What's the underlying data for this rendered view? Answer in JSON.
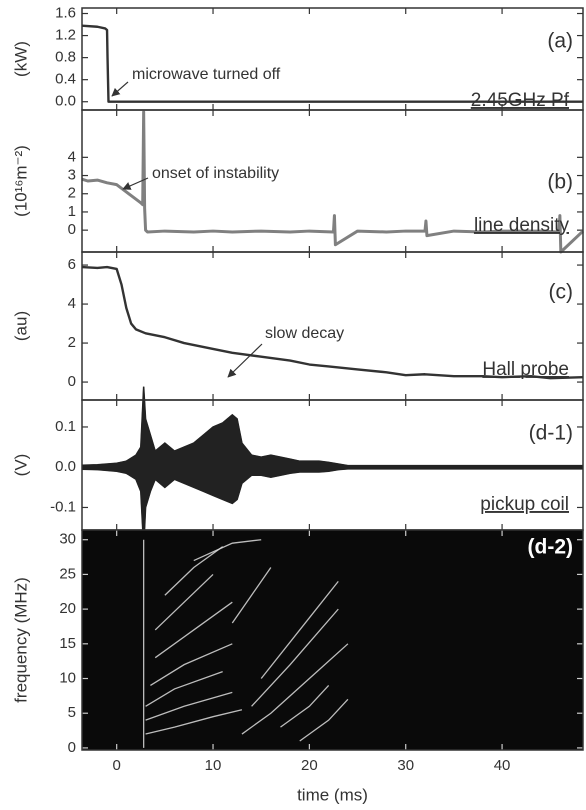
{
  "chart_data": [
    {
      "type": "line",
      "ylabel": "(kW)",
      "label": "(a)",
      "signal": "2.45GHz Pf",
      "note": "microwave turned off",
      "xlim": [
        -3.6,
        48.4
      ],
      "xticks": [
        0,
        10,
        20,
        30,
        40
      ],
      "ylim": [
        -0.15,
        1.7
      ],
      "yticks": [
        {
          "value": 0,
          "label": "0.0"
        },
        0.4,
        0.8,
        1.2,
        1.6
      ],
      "color": "#333333",
      "x": [
        -3.6,
        -2,
        -1.2,
        -1,
        -0.95,
        -0.85,
        48.4
      ],
      "values": [
        1.38,
        1.36,
        1.33,
        1.3,
        0.8,
        0,
        0
      ]
    },
    {
      "type": "line",
      "ylabel": "(10¹⁶m⁻²)",
      "label": "(b)",
      "signal": "line density",
      "note": "onset of instability",
      "xlim": [
        -3.6,
        48.4
      ],
      "xticks": [
        0,
        10,
        20,
        30,
        40
      ],
      "ylim": [
        -1.2,
        6.6
      ],
      "yticks": [
        0,
        1,
        2,
        3,
        4
      ],
      "color": "#808080",
      "x": [
        -3.6,
        -3,
        -2,
        -1,
        0,
        0.5,
        1,
        1.5,
        2,
        2.5,
        2.7,
        2.8,
        2.9,
        3.0,
        3.2,
        5,
        8,
        10,
        12,
        15,
        18,
        20,
        22.5,
        22.6,
        22.7,
        25,
        28,
        30,
        32,
        32.1,
        32.2,
        35,
        38,
        40,
        44,
        45.9,
        46,
        46.1,
        48.4
      ],
      "values": [
        2.8,
        2.7,
        2.75,
        2.6,
        2.5,
        2.3,
        2.1,
        1.9,
        1.7,
        1.5,
        1.4,
        6.5,
        1.2,
        0,
        -0.1,
        -0.05,
        -0.1,
        -0.05,
        -0.1,
        -0.05,
        -0.1,
        -0.05,
        -0.1,
        0.8,
        -0.8,
        -0.05,
        -0.1,
        -0.05,
        -0.05,
        0.5,
        -0.3,
        -0.05,
        -0.1,
        -0.05,
        -0.05,
        -0.1,
        0.8,
        -1.2,
        -0.05
      ]
    },
    {
      "type": "line",
      "ylabel": "(au)",
      "label": "(c)",
      "signal": "Hall probe",
      "note": "slow decay",
      "xlim": [
        -3.6,
        48.4
      ],
      "xticks": [
        0,
        10,
        20,
        30,
        40
      ],
      "ylim": [
        -0.92,
        6.67
      ],
      "yticks": [
        0,
        2,
        4,
        6
      ],
      "color": "#333333",
      "x": [
        -3.6,
        -2,
        -1,
        0,
        0.5,
        1,
        1.5,
        2,
        3,
        5,
        7,
        10,
        12,
        15,
        18,
        20,
        22,
        25,
        28,
        30,
        32,
        35,
        38,
        40,
        43,
        45,
        48.4
      ],
      "values": [
        5.9,
        5.85,
        5.9,
        5.8,
        5,
        3.8,
        3,
        2.7,
        2.5,
        2.3,
        2.0,
        1.7,
        1.5,
        1.3,
        1.1,
        0.9,
        0.8,
        0.65,
        0.5,
        0.35,
        0.4,
        0.3,
        0.3,
        0.25,
        0.3,
        0.2,
        0.25
      ]
    },
    {
      "type": "band",
      "ylabel": "(V)",
      "label": "(d-1)",
      "signal": "pickup coil",
      "xlim": [
        -3.6,
        48.4
      ],
      "xticks": [
        0,
        10,
        20,
        30,
        40
      ],
      "ylim": [
        -0.156,
        0.167
      ],
      "yticks": [
        -0.1,
        {
          "value": 0,
          "label": "0.0"
        },
        0.1
      ],
      "color": "#222222",
      "x": [
        -3.6,
        -2,
        0,
        1,
        2,
        2.5,
        2.8,
        3,
        3.5,
        4,
        5,
        6,
        7,
        8,
        9,
        10,
        11,
        12,
        12.5,
        13,
        14,
        15,
        16,
        17,
        18,
        19,
        20,
        21,
        22,
        23,
        24,
        30,
        40,
        48.4
      ],
      "series": [
        {
          "values": [
            0.005,
            0.006,
            0.01,
            0.015,
            0.03,
            0.05,
            0.2,
            0.12,
            0.08,
            0.04,
            0.06,
            0.04,
            0.05,
            0.06,
            0.08,
            0.1,
            0.11,
            0.13,
            0.12,
            0.06,
            0.03,
            0.025,
            0.03,
            0.025,
            0.02,
            0.015,
            0.015,
            0.015,
            0.012,
            0.008,
            0.004,
            0.004,
            0.004,
            0.004
          ]
        },
        {
          "values": [
            -0.005,
            -0.006,
            -0.01,
            -0.015,
            -0.03,
            -0.06,
            -0.2,
            -0.1,
            -0.06,
            -0.03,
            -0.05,
            -0.03,
            -0.04,
            -0.05,
            -0.06,
            -0.07,
            -0.08,
            -0.09,
            -0.08,
            -0.04,
            -0.02,
            -0.02,
            -0.025,
            -0.02,
            -0.015,
            -0.012,
            -0.012,
            -0.012,
            -0.01,
            -0.006,
            -0.004,
            -0.004,
            -0.004,
            -0.004
          ]
        }
      ]
    },
    {
      "type": "spectrogram",
      "ylabel": "frequency (MHz)",
      "label": "(d-2)",
      "xlabel": "time (ms)",
      "xlim": [
        -3.6,
        48.4
      ],
      "xticks": [
        0,
        10,
        20,
        30,
        40
      ],
      "ylim": [
        -0.3,
        31.4
      ],
      "yticks": [
        0,
        5,
        10,
        15,
        20,
        25,
        30
      ],
      "background": "#0a0a0a",
      "color": "#dddddd",
      "series": [
        {
          "x": [
            2.8,
            2.8
          ],
          "values": [
            0,
            30
          ]
        },
        {
          "x": [
            3,
            6,
            10,
            13
          ],
          "values": [
            2,
            3,
            4.5,
            5.5
          ]
        },
        {
          "x": [
            3,
            7,
            12
          ],
          "values": [
            4,
            6,
            8
          ]
        },
        {
          "x": [
            3,
            6,
            11
          ],
          "values": [
            6,
            8.5,
            11
          ]
        },
        {
          "x": [
            3.5,
            7,
            12
          ],
          "values": [
            9,
            12,
            15
          ]
        },
        {
          "x": [
            4,
            8,
            12
          ],
          "values": [
            13,
            17,
            21
          ]
        },
        {
          "x": [
            4,
            7,
            10
          ],
          "values": [
            17,
            21,
            25
          ]
        },
        {
          "x": [
            5,
            8,
            11
          ],
          "values": [
            22,
            26,
            29
          ]
        },
        {
          "x": [
            13,
            16,
            20,
            24
          ],
          "values": [
            2,
            5,
            10,
            15
          ]
        },
        {
          "x": [
            14,
            18,
            23
          ],
          "values": [
            6,
            12,
            20
          ]
        },
        {
          "x": [
            15,
            19,
            23
          ],
          "values": [
            10,
            17,
            24
          ]
        },
        {
          "x": [
            12,
            14,
            16
          ],
          "values": [
            18,
            22,
            26
          ]
        },
        {
          "x": [
            17,
            20,
            22
          ],
          "values": [
            3,
            6,
            9
          ]
        },
        {
          "x": [
            19,
            22,
            24
          ],
          "values": [
            1,
            4,
            7
          ]
        },
        {
          "x": [
            8,
            12,
            15
          ],
          "values": [
            27,
            29.5,
            30
          ]
        }
      ]
    }
  ]
}
